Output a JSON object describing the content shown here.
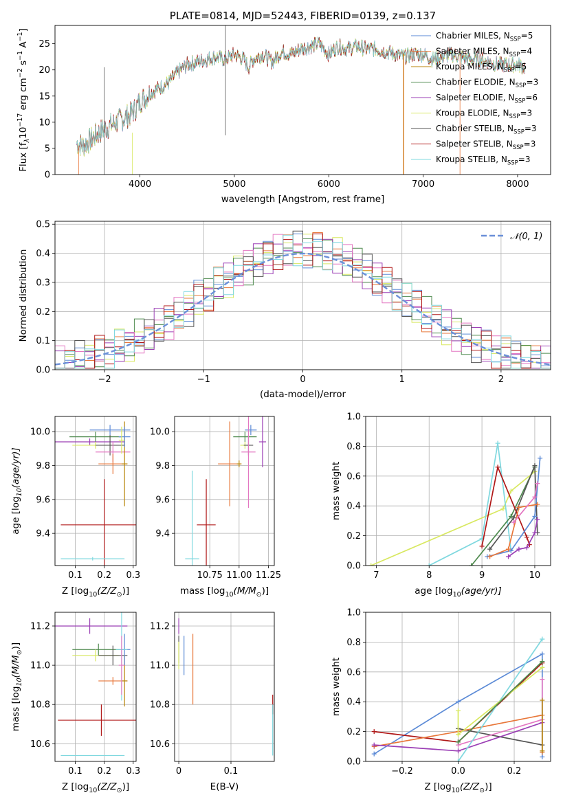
{
  "colors": {
    "chabrier_miles": "#5b8ad6",
    "salpeter_miles": "#e8773a",
    "kroupa_miles": "#b8860b",
    "chabrier_elodie": "#4e8a4e",
    "salpeter_elodie": "#9b3fb5",
    "kroupa_elodie": "#d8e860",
    "chabrier_stelib": "#555555",
    "salpeter_stelib": "#b01818",
    "kroupa_stelib": "#7fd8df",
    "pink": "#e377c2",
    "normal_curve": "#6a8fd8"
  },
  "chart_data": [
    {
      "id": "spectrum",
      "type": "line",
      "title": "PLATE=0814, MJD=52443, FIBERID=0139, z=0.137",
      "xlabel": "wavelength [Angstrom, rest frame]",
      "ylabel": "Flux [f",
      "ylabel_sub": "λ",
      "ylabel_rest": "10",
      "ylabel_sup1": "−17",
      "ylabel_rest2": " erg cm",
      "ylabel_sup2": "−2",
      "ylabel_rest3": " s",
      "ylabel_sup3": "−1",
      "ylabel_rest4": " A",
      "ylabel_sup4": "−1",
      "ylabel_end": "]",
      "xlim": [
        3100,
        8350
      ],
      "ylim": [
        0,
        28.5
      ],
      "xticks": [
        4000,
        5000,
        6000,
        7000,
        8000
      ],
      "yticks": [
        0,
        5,
        10,
        15,
        20,
        25
      ],
      "grid": false,
      "legend_placement": "top-right",
      "spectrum_anchors": [
        [
          3330,
          6.0
        ],
        [
          3400,
          5.5
        ],
        [
          3500,
          7.0
        ],
        [
          3600,
          8.5
        ],
        [
          3700,
          9.5
        ],
        [
          3800,
          10.5
        ],
        [
          3900,
          11.5
        ],
        [
          3950,
          12.5
        ],
        [
          4000,
          14.0
        ],
        [
          4100,
          15.5
        ],
        [
          4200,
          16.5
        ],
        [
          4300,
          17.5
        ],
        [
          4400,
          19.5
        ],
        [
          4500,
          21.0
        ],
        [
          4600,
          21.5
        ],
        [
          4700,
          22.0
        ],
        [
          4800,
          22.5
        ],
        [
          4900,
          22.0
        ],
        [
          5000,
          23.0
        ],
        [
          5100,
          22.0
        ],
        [
          5150,
          20.5
        ],
        [
          5200,
          22.0
        ],
        [
          5300,
          23.0
        ],
        [
          5400,
          21.5
        ],
        [
          5500,
          23.5
        ],
        [
          5600,
          23.0
        ],
        [
          5700,
          24.0
        ],
        [
          5800,
          24.5
        ],
        [
          5900,
          25.0
        ],
        [
          6000,
          23.0
        ],
        [
          6100,
          24.5
        ],
        [
          6200,
          24.0
        ],
        [
          6300,
          24.5
        ],
        [
          6400,
          24.0
        ],
        [
          6500,
          24.0
        ],
        [
          6600,
          23.5
        ],
        [
          6700,
          23.0
        ],
        [
          6800,
          22.5
        ],
        [
          6900,
          23.0
        ],
        [
          7000,
          23.0
        ],
        [
          7100,
          22.0
        ],
        [
          7200,
          22.5
        ],
        [
          7300,
          23.0
        ],
        [
          7400,
          22.5
        ],
        [
          7500,
          22.0
        ],
        [
          7600,
          22.0
        ],
        [
          7700,
          21.5
        ],
        [
          7800,
          21.0
        ],
        [
          7900,
          21.0
        ],
        [
          8000,
          21.0
        ],
        [
          8080,
          20.5
        ]
      ],
      "series": [
        {
          "label": "Chabrier MILES, N",
          "label_sub": "SSP",
          "label_val": "=5",
          "color_key": "chabrier_miles"
        },
        {
          "label": "Salpeter MILES, N",
          "label_sub": "SSP",
          "label_val": "=4",
          "color_key": "salpeter_miles"
        },
        {
          "label": "Kroupa MILES, N",
          "label_sub": "SSP",
          "label_val": "=5",
          "color_key": "kroupa_miles"
        },
        {
          "label": "Chabrier ELODIE, N",
          "label_sub": "SSP",
          "label_val": "=3",
          "color_key": "chabrier_elodie"
        },
        {
          "label": "Salpeter ELODIE, N",
          "label_sub": "SSP",
          "label_val": "=6",
          "color_key": "salpeter_elodie"
        },
        {
          "label": "Kroupa ELODIE, N",
          "label_sub": "SSP",
          "label_val": "=3",
          "color_key": "kroupa_elodie"
        },
        {
          "label": "Chabrier STELIB, N",
          "label_sub": "SSP",
          "label_val": "=3",
          "color_key": "chabrier_stelib"
        },
        {
          "label": "Salpeter STELIB, N",
          "label_sub": "SSP",
          "label_val": "=3",
          "color_key": "salpeter_stelib"
        },
        {
          "label": "Kroupa STELIB, N",
          "label_sub": "SSP",
          "label_val": "=3",
          "color_key": "kroupa_stelib"
        }
      ]
    },
    {
      "id": "residuals",
      "type": "line",
      "xlabel": "(data-model)/error",
      "ylabel": "Normed distribution",
      "xlim": [
        -2.5,
        2.5
      ],
      "ylim": [
        0,
        0.51
      ],
      "xticks": [
        -2,
        -1,
        0,
        1,
        2
      ],
      "yticks": [
        0.0,
        0.1,
        0.2,
        0.3,
        0.4,
        0.5
      ],
      "grid": true,
      "legend_placement": "top-right",
      "legend_label": "𝒩(0, 1)",
      "bin_width": 0.1,
      "hist_color_keys": [
        "chabrier_miles",
        "salpeter_miles",
        "kroupa_elodie",
        "chabrier_elodie",
        "salpeter_elodie",
        "pink",
        "chabrier_stelib",
        "salpeter_stelib",
        "kroupa_stelib"
      ]
    },
    {
      "id": "age_vs_Z",
      "type": "scatter",
      "xlabel": "Z [log",
      "xlabel_sub": "10",
      "xlabel_rest": "(Z/Z",
      "xlabel_sun": "⊙",
      "xlabel_end": ")]",
      "ylabel": "age  [log",
      "ylabel_sub": "10",
      "ylabel_rest": "(age/yr)]",
      "xlim": [
        0.03,
        0.31
      ],
      "ylim": [
        9.21,
        10.09
      ],
      "xticks": [
        0.1,
        0.2,
        0.3
      ],
      "yticks": [
        9.4,
        9.6,
        9.8,
        10.0
      ],
      "grid": true,
      "points": [
        {
          "x": 0.2,
          "y": 9.45,
          "xerr": 0.15,
          "yerr": 0.27,
          "color_key": "salpeter_stelib"
        },
        {
          "x": 0.16,
          "y": 9.25,
          "xerr": 0.11,
          "yerr": 0.01,
          "color_key": "kroupa_stelib"
        },
        {
          "x": 0.22,
          "y": 10.01,
          "xerr": 0.07,
          "yerr": 0.03,
          "color_key": "chabrier_miles"
        },
        {
          "x": 0.17,
          "y": 9.97,
          "xerr": 0.09,
          "yerr": 0.03,
          "color_key": "chabrier_elodie"
        },
        {
          "x": 0.15,
          "y": 9.94,
          "xerr": 0.12,
          "yerr": 0.02,
          "color_key": "salpeter_elodie"
        },
        {
          "x": 0.17,
          "y": 9.92,
          "xerr": 0.08,
          "yerr": 0.02,
          "color_key": "kroupa_elodie"
        },
        {
          "x": 0.22,
          "y": 9.92,
          "xerr": 0.05,
          "yerr": 0.06,
          "color_key": "chabrier_stelib"
        },
        {
          "x": 0.23,
          "y": 9.88,
          "xerr": 0.06,
          "yerr": 0.06,
          "color_key": "pink"
        },
        {
          "x": 0.23,
          "y": 9.81,
          "xerr": 0.05,
          "yerr": 0.06,
          "color_key": "salpeter_miles"
        },
        {
          "x": 0.27,
          "y": 9.81,
          "xerr": 0.01,
          "yerr": 0.25,
          "color_key": "kroupa_miles"
        },
        {
          "x": 0.27,
          "y": 9.97,
          "xerr": 0.02,
          "yerr": 0.06,
          "color_key": "chabrier_miles"
        },
        {
          "x": 0.26,
          "y": 9.95,
          "xerr": 0.01,
          "yerr": 0.08,
          "color_key": "kroupa_elodie"
        }
      ]
    },
    {
      "id": "age_vs_mass",
      "type": "scatter",
      "xlabel": "mass [log",
      "xlabel_sub": "10",
      "xlabel_rest": "(M/M",
      "xlabel_sun": "⊙",
      "xlabel_end": ")]",
      "xlim": [
        10.45,
        11.3
      ],
      "ylim": [
        9.21,
        10.09
      ],
      "xticks": [
        10.75,
        11.0,
        11.25
      ],
      "xtick_labels": [
        "10.75",
        "11.00",
        "11.25"
      ],
      "yticks": [
        9.4,
        9.6,
        9.8,
        10.0
      ],
      "grid": true,
      "points": [
        {
          "x": 10.72,
          "y": 9.45,
          "xerr": 0.08,
          "yerr": 0.27,
          "color_key": "salpeter_stelib"
        },
        {
          "x": 10.6,
          "y": 9.25,
          "xerr": 0.06,
          "yerr": 0.52,
          "color_key": "kroupa_stelib"
        },
        {
          "x": 10.92,
          "y": 9.81,
          "xerr": 0.1,
          "yerr": 0.25,
          "color_key": "salpeter_miles"
        },
        {
          "x": 11.1,
          "y": 10.01,
          "xerr": 0.05,
          "yerr": 0.03,
          "color_key": "chabrier_miles"
        },
        {
          "x": 11.05,
          "y": 9.97,
          "xerr": 0.1,
          "yerr": 0.03,
          "color_key": "chabrier_elodie"
        },
        {
          "x": 11.2,
          "y": 9.94,
          "xerr": 0.03,
          "yerr": 0.15,
          "color_key": "salpeter_elodie"
        },
        {
          "x": 11.05,
          "y": 9.92,
          "xerr": 0.04,
          "yerr": 0.02,
          "color_key": "kroupa_elodie"
        },
        {
          "x": 11.08,
          "y": 9.92,
          "xerr": 0.04,
          "yerr": 0.06,
          "color_key": "chabrier_stelib"
        },
        {
          "x": 11.08,
          "y": 9.88,
          "xerr": 0.06,
          "yerr": 0.33,
          "color_key": "pink"
        },
        {
          "x": 11.0,
          "y": 9.81,
          "xerr": 0.02,
          "yerr": 0.02,
          "color_key": "kroupa_miles"
        }
      ]
    },
    {
      "id": "mass_weight_vs_age",
      "type": "line",
      "xlabel": "age  [log",
      "xlabel_sub": "10",
      "xlabel_rest": "(age/yr)]",
      "ylabel": "mass weight",
      "xlim": [
        6.8,
        10.3
      ],
      "ylim": [
        0,
        1
      ],
      "xticks": [
        7,
        8,
        9,
        10
      ],
      "yticks": [
        0.0,
        0.2,
        0.4,
        0.6,
        0.8,
        1.0
      ],
      "grid": true,
      "series": [
        {
          "color_key": "kroupa_elodie",
          "x": [
            6.9,
            9.4,
            9.55,
            10.0
          ],
          "y": [
            0.0,
            0.38,
            0.5,
            0.63
          ]
        },
        {
          "color_key": "kroupa_stelib",
          "x": [
            8.0,
            9.0,
            9.3,
            9.55
          ],
          "y": [
            0.0,
            0.18,
            0.82,
            0.1
          ]
        },
        {
          "color_key": "chabrier_elodie",
          "x": [
            8.8,
            9.55,
            10.0
          ],
          "y": [
            0.0,
            0.33,
            0.66
          ]
        },
        {
          "color_key": "chabrier_stelib",
          "x": [
            9.15,
            9.6,
            10.0,
            10.05
          ],
          "y": [
            0.11,
            0.32,
            0.67,
            0.22
          ]
        },
        {
          "color_key": "salpeter_stelib",
          "x": [
            9.0,
            9.3,
            9.85,
            9.9
          ],
          "y": [
            0.13,
            0.66,
            0.19,
            0.14
          ]
        },
        {
          "color_key": "chabrier_miles",
          "x": [
            9.1,
            9.55,
            10.0,
            10.1
          ],
          "y": [
            0.06,
            0.1,
            0.33,
            0.72
          ]
        },
        {
          "color_key": "salpeter_miles",
          "x": [
            9.15,
            9.5,
            9.7,
            10.05
          ],
          "y": [
            0.06,
            0.11,
            0.39,
            0.41
          ]
        },
        {
          "color_key": "pink",
          "x": [
            9.6,
            10.0,
            10.05
          ],
          "y": [
            0.29,
            0.46,
            0.55
          ]
        },
        {
          "color_key": "salpeter_elodie",
          "x": [
            9.5,
            9.7,
            9.85,
            10.0,
            10.05
          ],
          "y": [
            0.06,
            0.11,
            0.12,
            0.22,
            0.31
          ]
        }
      ]
    },
    {
      "id": "mass_vs_Z",
      "type": "scatter",
      "xlabel": "Z [log",
      "xlabel_sub": "10",
      "xlabel_rest": "(Z/Z",
      "xlabel_sun": "⊙",
      "xlabel_end": ")]",
      "ylabel": "mass [log",
      "ylabel_sub": "10",
      "ylabel_rest": "(M/M",
      "ylabel_sun": "⊙",
      "ylabel_end": ")]",
      "xlim": [
        0.03,
        0.31
      ],
      "ylim": [
        10.51,
        11.27
      ],
      "xticks": [
        0.1,
        0.2,
        0.3
      ],
      "yticks": [
        10.6,
        10.8,
        11.0,
        11.2
      ],
      "grid": true,
      "points": [
        {
          "x": 0.19,
          "y": 10.72,
          "xerr": 0.15,
          "yerr": 0.08,
          "color_key": "salpeter_stelib"
        },
        {
          "x": 0.16,
          "y": 10.54,
          "xerr": 0.11,
          "yerr": 0.0,
          "color_key": "kroupa_stelib"
        },
        {
          "x": 0.15,
          "y": 11.2,
          "xerr": 0.13,
          "yerr": 0.04,
          "color_key": "salpeter_elodie"
        },
        {
          "x": 0.18,
          "y": 11.08,
          "xerr": 0.09,
          "yerr": 0.03,
          "color_key": "chabrier_elodie"
        },
        {
          "x": 0.17,
          "y": 11.05,
          "xerr": 0.08,
          "yerr": 0.03,
          "color_key": "kroupa_elodie"
        },
        {
          "x": 0.23,
          "y": 11.05,
          "xerr": 0.05,
          "yerr": 0.05,
          "color_key": "chabrier_stelib"
        },
        {
          "x": 0.23,
          "y": 10.92,
          "xerr": 0.05,
          "yerr": 0.02,
          "color_key": "salpeter_miles"
        },
        {
          "x": 0.27,
          "y": 10.92,
          "xerr": 0.01,
          "yerr": 0.13,
          "color_key": "kroupa_miles"
        },
        {
          "x": 0.27,
          "y": 11.08,
          "xerr": 0.02,
          "yerr": 0.08,
          "color_key": "chabrier_miles"
        },
        {
          "x": 0.26,
          "y": 11.08,
          "xerr": 0.02,
          "yerr": 0.26,
          "color_key": "kroupa_stelib"
        },
        {
          "x": 0.26,
          "y": 11.0,
          "xerr": 0.01,
          "yerr": 0.15,
          "color_key": "pink"
        }
      ]
    },
    {
      "id": "mass_vs_EBV",
      "type": "scatter",
      "xlabel": "E(B-V)",
      "xlim": [
        -0.008,
        0.183
      ],
      "ylim": [
        10.51,
        11.27
      ],
      "xticks": [
        0.0,
        0.1
      ],
      "yticks": [
        10.6,
        10.8,
        11.0,
        11.2
      ],
      "grid": true,
      "points": [
        {
          "x": 0.0,
          "y": 11.2,
          "xerr": 0.0,
          "yerr": 0.04,
          "color_key": "salpeter_elodie"
        },
        {
          "x": 0.0,
          "y": 11.08,
          "xerr": 0.0,
          "yerr": 0.07,
          "color_key": "chabrier_stelib"
        },
        {
          "x": 0.0,
          "y": 11.05,
          "xerr": 0.0,
          "yerr": 0.07,
          "color_key": "kroupa_elodie"
        },
        {
          "x": 0.01,
          "y": 11.05,
          "xerr": 0.0,
          "yerr": 0.1,
          "color_key": "chabrier_miles"
        },
        {
          "x": 0.027,
          "y": 10.98,
          "xerr": 0.0,
          "yerr": 0.18,
          "color_key": "salpeter_miles"
        },
        {
          "x": 0.18,
          "y": 10.8,
          "xerr": 0.0,
          "yerr": 0.05,
          "color_key": "salpeter_stelib"
        },
        {
          "x": 0.18,
          "y": 10.67,
          "xerr": 0.0,
          "yerr": 0.13,
          "color_key": "kroupa_stelib"
        }
      ]
    },
    {
      "id": "mass_weight_vs_Z",
      "type": "line",
      "xlabel": "Z [log",
      "xlabel_sub": "10",
      "xlabel_rest": "(Z/Z",
      "xlabel_sun": "⊙",
      "xlabel_end": ")]",
      "ylabel": "mass weight",
      "xlim": [
        -0.33,
        0.33
      ],
      "ylim": [
        0,
        1
      ],
      "xticks": [
        -0.2,
        0.0,
        0.2
      ],
      "yticks": [
        0.0,
        0.2,
        0.4,
        0.6,
        0.8,
        1.0
      ],
      "grid": true,
      "series": [
        {
          "color_key": "chabrier_miles",
          "x": [
            -0.3,
            0.0,
            0.3,
            0.3
          ],
          "y": [
            0.05,
            0.4,
            0.72,
            0.03
          ]
        },
        {
          "color_key": "salpeter_stelib",
          "x": [
            -0.3,
            0.0,
            0.3
          ],
          "y": [
            0.2,
            0.13,
            0.66
          ]
        },
        {
          "color_key": "chabrier_stelib",
          "x": [
            0.0,
            0.3
          ],
          "y": [
            0.22,
            0.11
          ]
        },
        {
          "color_key": "salpeter_miles",
          "x": [
            -0.3,
            0.0,
            0.3,
            0.3
          ],
          "y": [
            0.1,
            0.2,
            0.31,
            0.06
          ]
        },
        {
          "color_key": "pink",
          "x": [
            0.0,
            0.3,
            0.3
          ],
          "y": [
            0.11,
            0.28,
            0.55
          ]
        },
        {
          "color_key": "salpeter_elodie",
          "x": [
            -0.3,
            0.0,
            0.3
          ],
          "y": [
            0.11,
            0.07,
            0.26
          ]
        },
        {
          "color_key": "kroupa_stelib",
          "x": [
            0.0,
            0.3
          ],
          "y": [
            0.0,
            0.82
          ]
        },
        {
          "color_key": "kroupa_elodie",
          "x": [
            0.0,
            0.0,
            0.3
          ],
          "y": [
            0.34,
            0.18,
            0.63
          ]
        },
        {
          "color_key": "chabrier_elodie",
          "x": [
            0.0,
            0.3
          ],
          "y": [
            0.13,
            0.67
          ]
        },
        {
          "color_key": "kroupa_miles",
          "x": [
            0.3,
            0.3
          ],
          "y": [
            0.41,
            0.07
          ]
        }
      ]
    }
  ]
}
